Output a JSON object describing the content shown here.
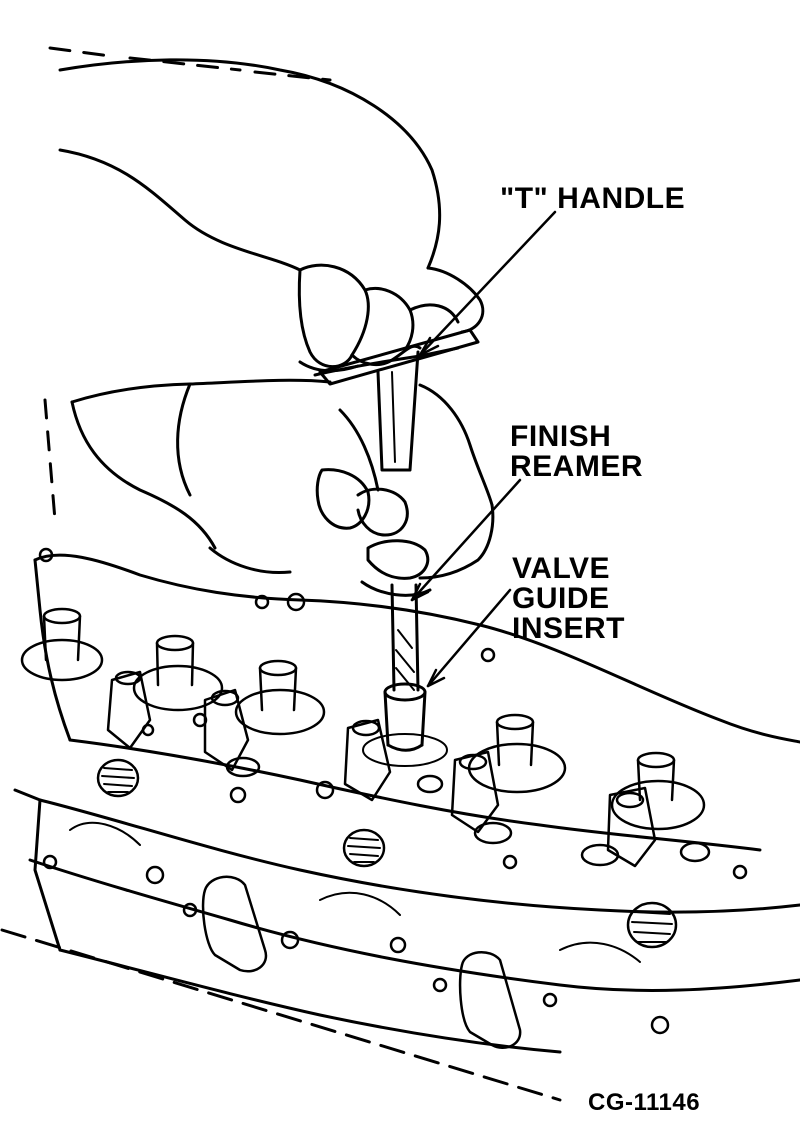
{
  "callouts": {
    "t_handle": "\"T\" HANDLE",
    "finish_reamer": [
      "FINISH",
      "REAMER"
    ],
    "valve_guide_insert": [
      "VALVE",
      "GUIDE",
      "INSERT"
    ]
  },
  "figure_code": "CG-11146",
  "colors": {
    "ink": "#000000",
    "paper": "#ffffff"
  }
}
